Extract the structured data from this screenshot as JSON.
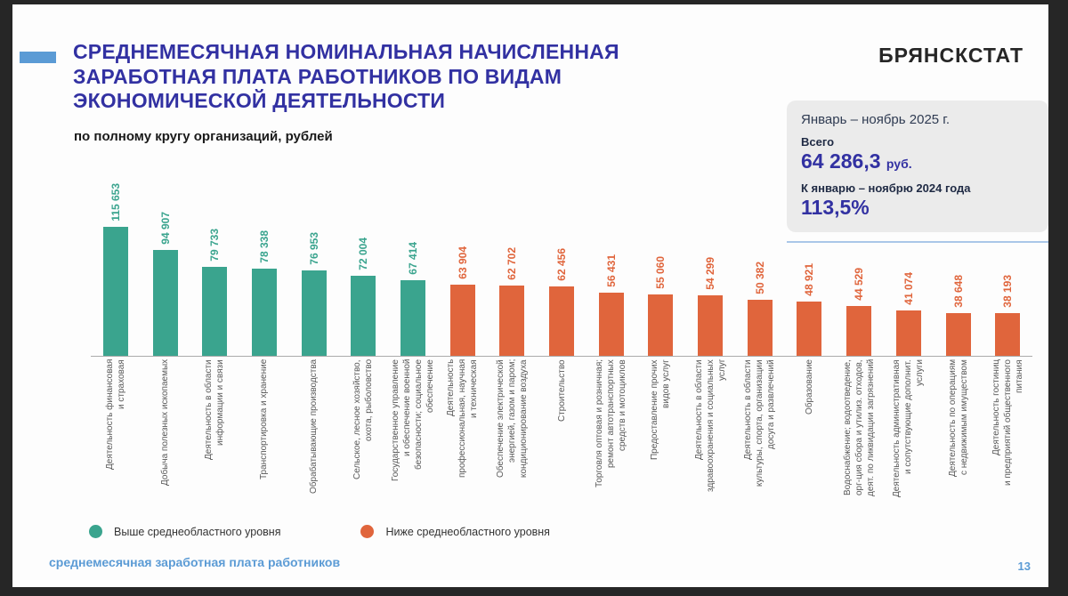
{
  "header": {
    "title": "СРЕДНЕМЕСЯЧНАЯ НОМИНАЛЬНАЯ НАЧИСЛЕННАЯ\nЗАРАБОТНАЯ ПЛАТА РАБОТНИКОВ ПО ВИДАМ\nЭКОНОМИЧЕСКОЙ ДЕЯТЕЛЬНОСТИ",
    "subtitle": "по полному кругу организаций, рублей",
    "logo": "БРЯНСКСТАТ"
  },
  "info_box": {
    "period": "Январь – ноябрь 2025 г.",
    "total_label": "Всего",
    "total_value": "64 286,3",
    "total_unit": "руб.",
    "compare_label": "К январю – ноябрю 2024 года",
    "compare_value": "113,5%"
  },
  "legend": {
    "above": {
      "label": "Выше среднеобластного уровня"
    },
    "below": {
      "label": "Ниже среднеобластного уровня"
    }
  },
  "footer": {
    "text": "среднемесячная заработная плата работников",
    "page_number": "13"
  },
  "chart_data": {
    "type": "bar",
    "orientation": "vertical",
    "unit": "руб.",
    "ylim": [
      0,
      120000
    ],
    "grid": false,
    "legend_position": "bottom",
    "colors": {
      "above": "#3aa48e",
      "below": "#e0653c"
    },
    "bars": [
      {
        "group": "above",
        "value": 115653,
        "value_label": "115 653",
        "label_lines": [
          "Деятельность финансовая",
          "и страховая"
        ]
      },
      {
        "group": "above",
        "value": 94907,
        "value_label": "94 907",
        "label_lines": [
          "Добыча полезных ископаемых"
        ]
      },
      {
        "group": "above",
        "value": 79733,
        "value_label": "79 733",
        "label_lines": [
          "Деятельность в области",
          "информации и связи"
        ]
      },
      {
        "group": "above",
        "value": 78338,
        "value_label": "78 338",
        "label_lines": [
          "Транспортировка и хранение"
        ]
      },
      {
        "group": "above",
        "value": 76953,
        "value_label": "76 953",
        "label_lines": [
          "Обрабатывающие производства"
        ]
      },
      {
        "group": "above",
        "value": 72004,
        "value_label": "72 004",
        "label_lines": [
          "Сельское, лесное хозяйство,",
          "охота, рыболовство"
        ]
      },
      {
        "group": "above",
        "value": 67414,
        "value_label": "67 414",
        "label_lines": [
          "Государственное управление",
          "и обеспечение военной",
          "безопасности; социальное",
          "обеспечение"
        ]
      },
      {
        "group": "below",
        "value": 63904,
        "value_label": "63 904",
        "label_lines": [
          "Деятельность",
          "профессиональная, научная",
          "и техническая"
        ]
      },
      {
        "group": "below",
        "value": 62702,
        "value_label": "62 702",
        "label_lines": [
          "Обеспечение электрической",
          "энергией, газом и паром;",
          "кондиционирование воздуха"
        ]
      },
      {
        "group": "below",
        "value": 62456,
        "value_label": "62 456",
        "label_lines": [
          "Строительство"
        ]
      },
      {
        "group": "below",
        "value": 56431,
        "value_label": "56 431",
        "label_lines": [
          "Торговля оптовая и розничная;",
          "ремонт автотранспортных",
          "средств и мотоциклов"
        ]
      },
      {
        "group": "below",
        "value": 55060,
        "value_label": "55 060",
        "label_lines": [
          "Предоставление прочих",
          "видов услуг"
        ]
      },
      {
        "group": "below",
        "value": 54299,
        "value_label": "54 299",
        "label_lines": [
          "Деятельность в области",
          "здравоохранения и социальных",
          "услуг"
        ]
      },
      {
        "group": "below",
        "value": 50382,
        "value_label": "50 382",
        "label_lines": [
          "Деятельность в области",
          "культуры, спорта, организации",
          "досуга и развлечений"
        ]
      },
      {
        "group": "below",
        "value": 48921,
        "value_label": "48 921",
        "label_lines": [
          "Образование"
        ]
      },
      {
        "group": "below",
        "value": 44529,
        "value_label": "44 529",
        "label_lines": [
          "Водоснабжение; водоотведение,",
          "орг-ция сбора и утилиз. отходов,",
          "деят. по ликвидации загрязнений"
        ]
      },
      {
        "group": "below",
        "value": 41074,
        "value_label": "41 074",
        "label_lines": [
          "Деятельность административная",
          "и сопутствующие дополнит.",
          "услуги"
        ]
      },
      {
        "group": "below",
        "value": 38648,
        "value_label": "38 648",
        "label_lines": [
          "Деятельность по операциям",
          "с недвижимым имуществом"
        ]
      },
      {
        "group": "below",
        "value": 38193,
        "value_label": "38 193",
        "label_lines": [
          "Деятельность гостиниц",
          "и предприятий общественного",
          "питания"
        ]
      }
    ]
  }
}
